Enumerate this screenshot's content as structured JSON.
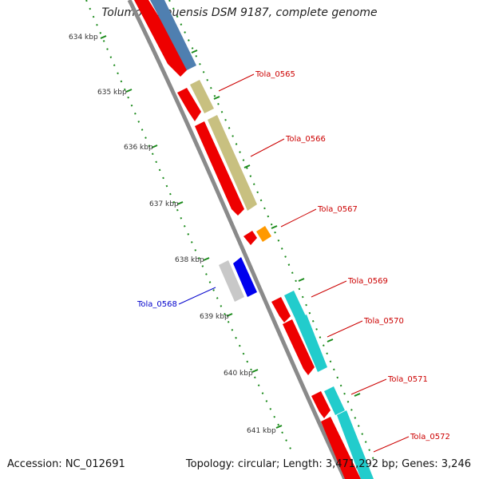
{
  "title": "Tolumonas auensis DSM 9187, complete genome",
  "footer": {
    "accession": "Accession: NC_012691",
    "summary": "Topology: circular; Length: 3,471,292 bp; Genes: 3,246"
  },
  "scale_labels": [
    "634 kbp",
    "635 kbp",
    "636 kbp",
    "637 kbp",
    "638 kbp",
    "639 kbp",
    "640 kbp",
    "641 kbp"
  ],
  "colors": {
    "backbone": "#8a8a8a",
    "cds": "#ee0000",
    "forward_gene": "#c8c080",
    "blue_gene": "#4f7fb0",
    "cyan_gene": "#22cccc",
    "orange_gene": "#ff9900",
    "reverse_blue": "#0000ee",
    "reverse_grey": "#c8c8c8",
    "tick": "#1a8a1a",
    "label_red": "#cc0000",
    "label_blue": "#0000cc"
  },
  "gene_labels": [
    {
      "name": "Tola_0565",
      "color": "label_red"
    },
    {
      "name": "Tola_0566",
      "color": "label_red"
    },
    {
      "name": "Tola_0567",
      "color": "label_red"
    },
    {
      "name": "Tola_0568",
      "color": "label_blue"
    },
    {
      "name": "Tola_0569",
      "color": "label_red"
    },
    {
      "name": "Tola_0570",
      "color": "label_red"
    },
    {
      "name": "Tola_0571",
      "color": "label_red"
    },
    {
      "name": "Tola_0572",
      "color": "label_red"
    }
  ]
}
